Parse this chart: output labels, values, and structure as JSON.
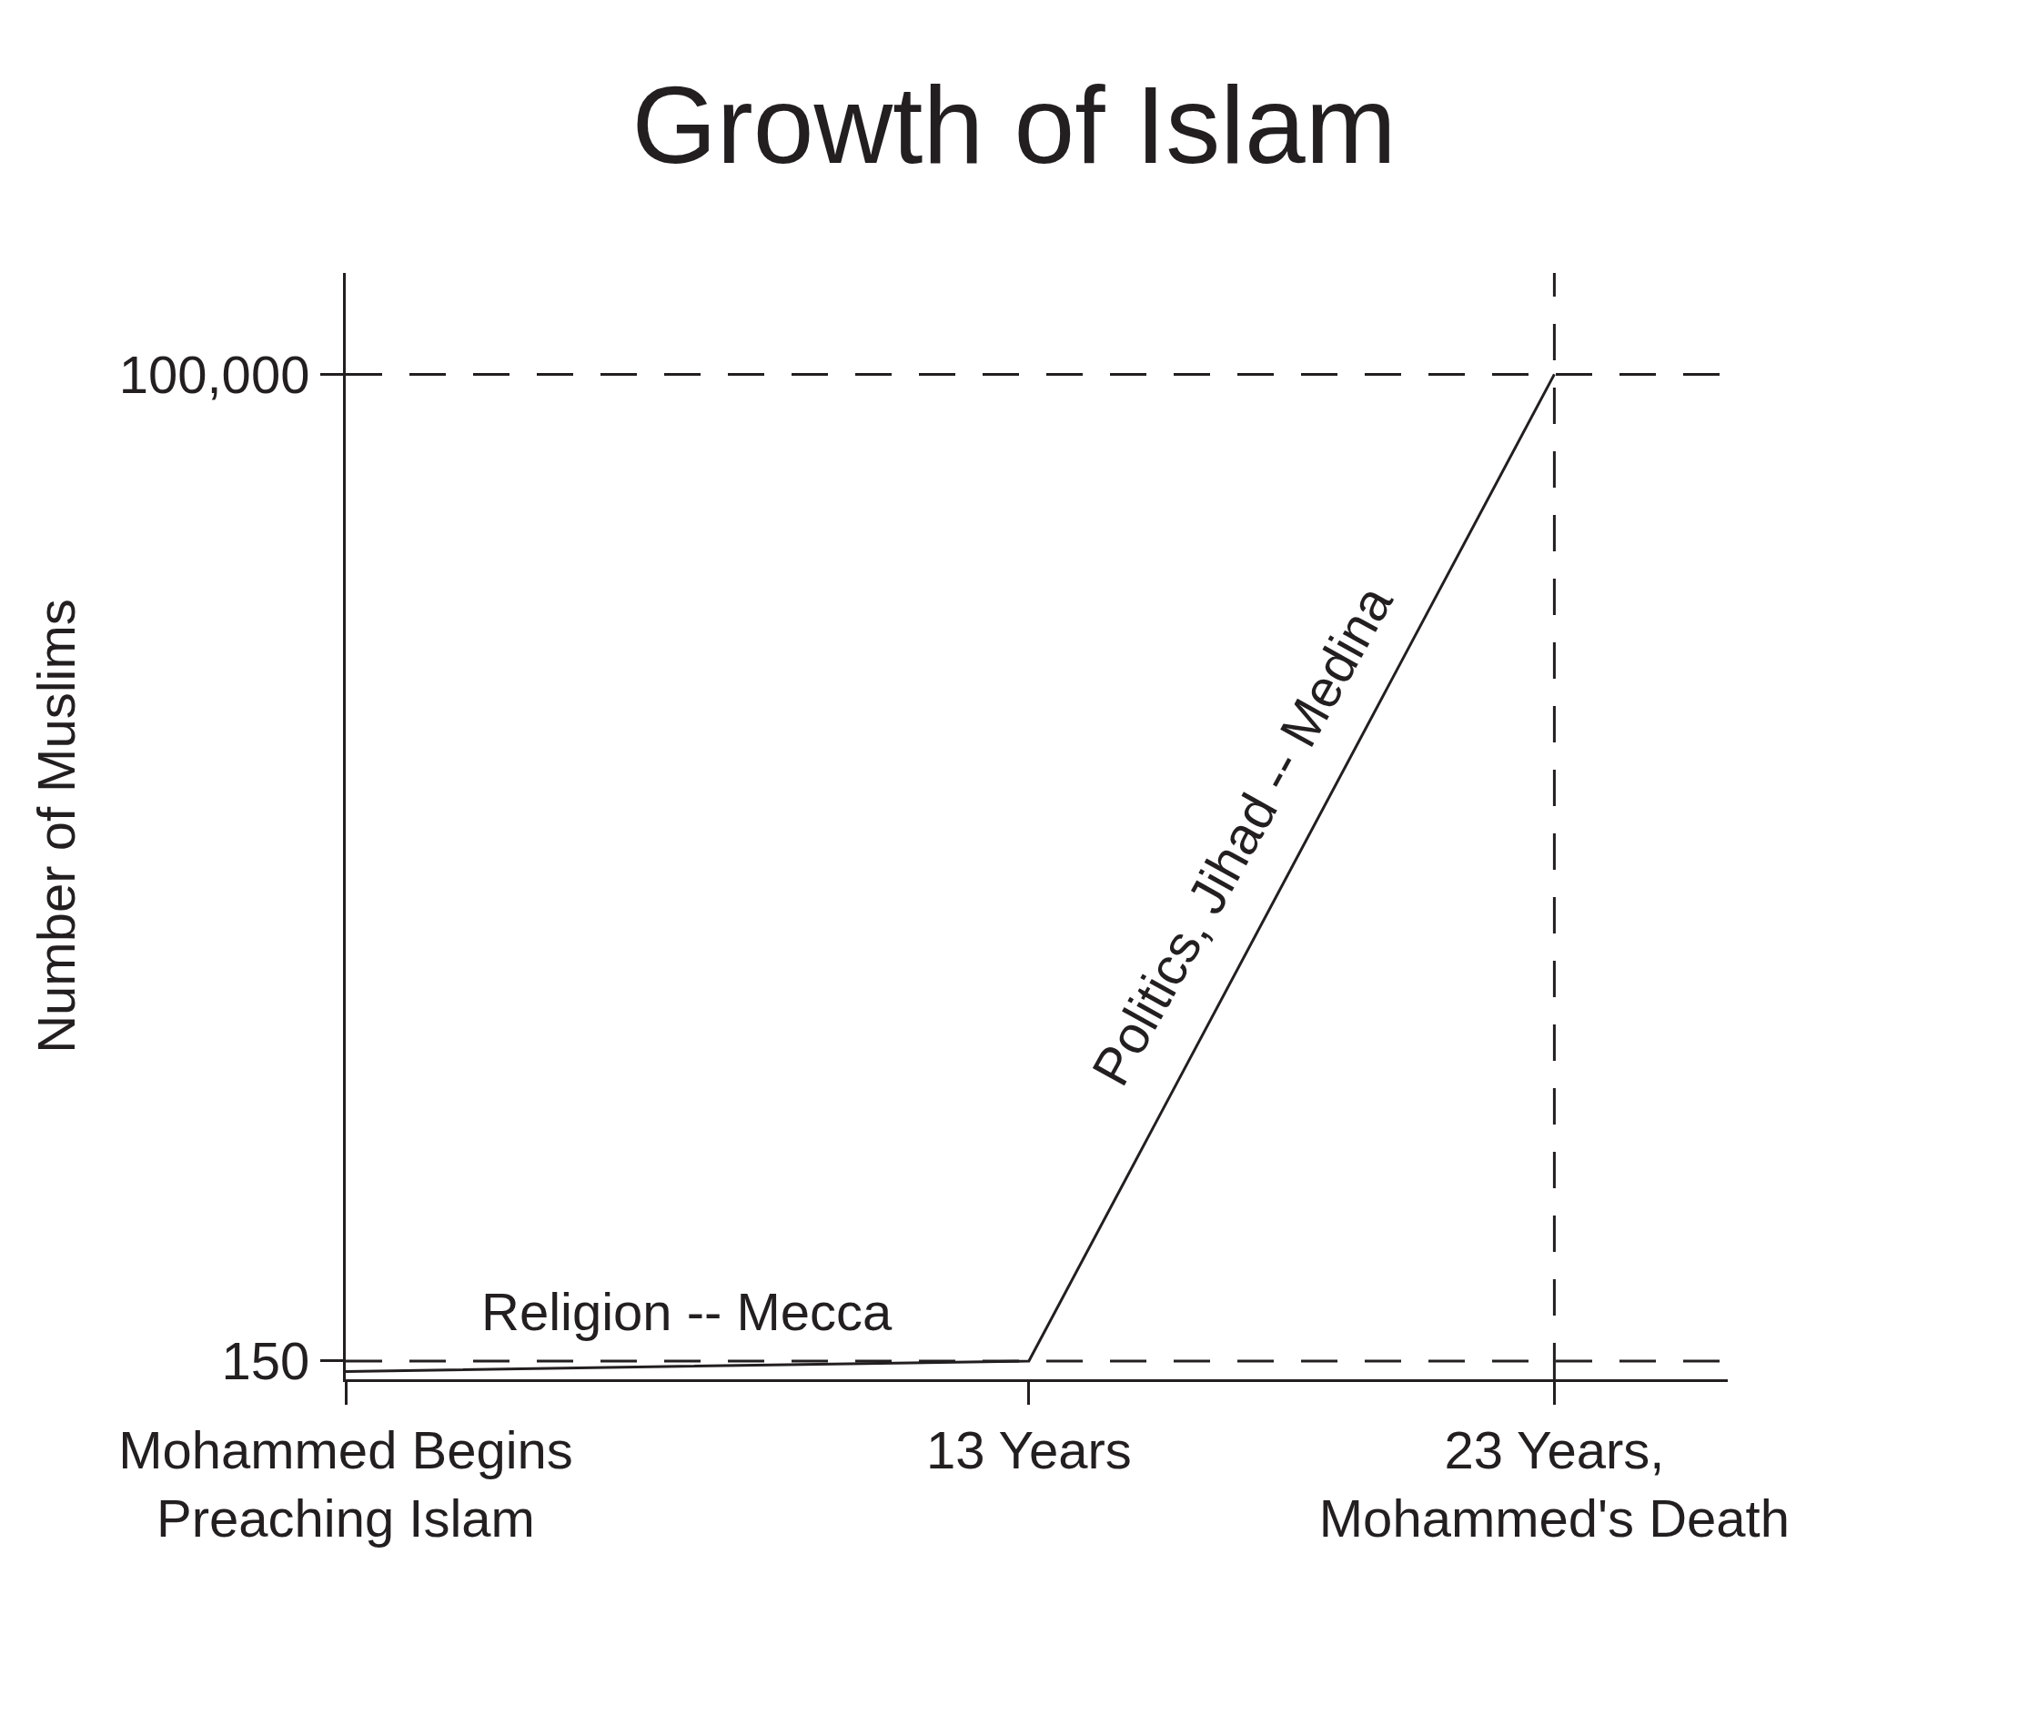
{
  "chart_data": {
    "type": "line",
    "title": "Growth of Islam",
    "ylabel": "Number of Muslims",
    "x": [
      0,
      13,
      23
    ],
    "series": [
      {
        "color": "#231f20",
        "values": [
          140,
          150,
          100000
        ]
      }
    ],
    "xlim": [
      0,
      26.3
    ],
    "xticks": [
      {
        "value": 0,
        "label": "Mohammed Begins Preaching Islam"
      },
      {
        "value": 13,
        "label": "13 Years"
      },
      {
        "value": 23,
        "label": "23 Years, Mohammed's Death"
      }
    ],
    "ylim": [
      133,
      195000
    ],
    "log": "y",
    "yticks": [
      150,
      {
        "value": 100000,
        "label": "100,000"
      }
    ],
    "ref_lines": [
      {
        "axis": "y",
        "value": 150,
        "line_style": "dashed"
      },
      {
        "axis": "y",
        "value": 100000,
        "line_style": "dashed"
      },
      {
        "axis": "x",
        "value": 23,
        "line_style": "dashed"
      }
    ],
    "annotations": [
      {
        "text": "Religion -- Mecca",
        "x": 6.5,
        "y": 150
      },
      {
        "text": "Politics, Jihad -- Medina",
        "x": 18,
        "y": 4000
      }
    ],
    "grid": false,
    "marker": "none",
    "line_style": "solid"
  }
}
